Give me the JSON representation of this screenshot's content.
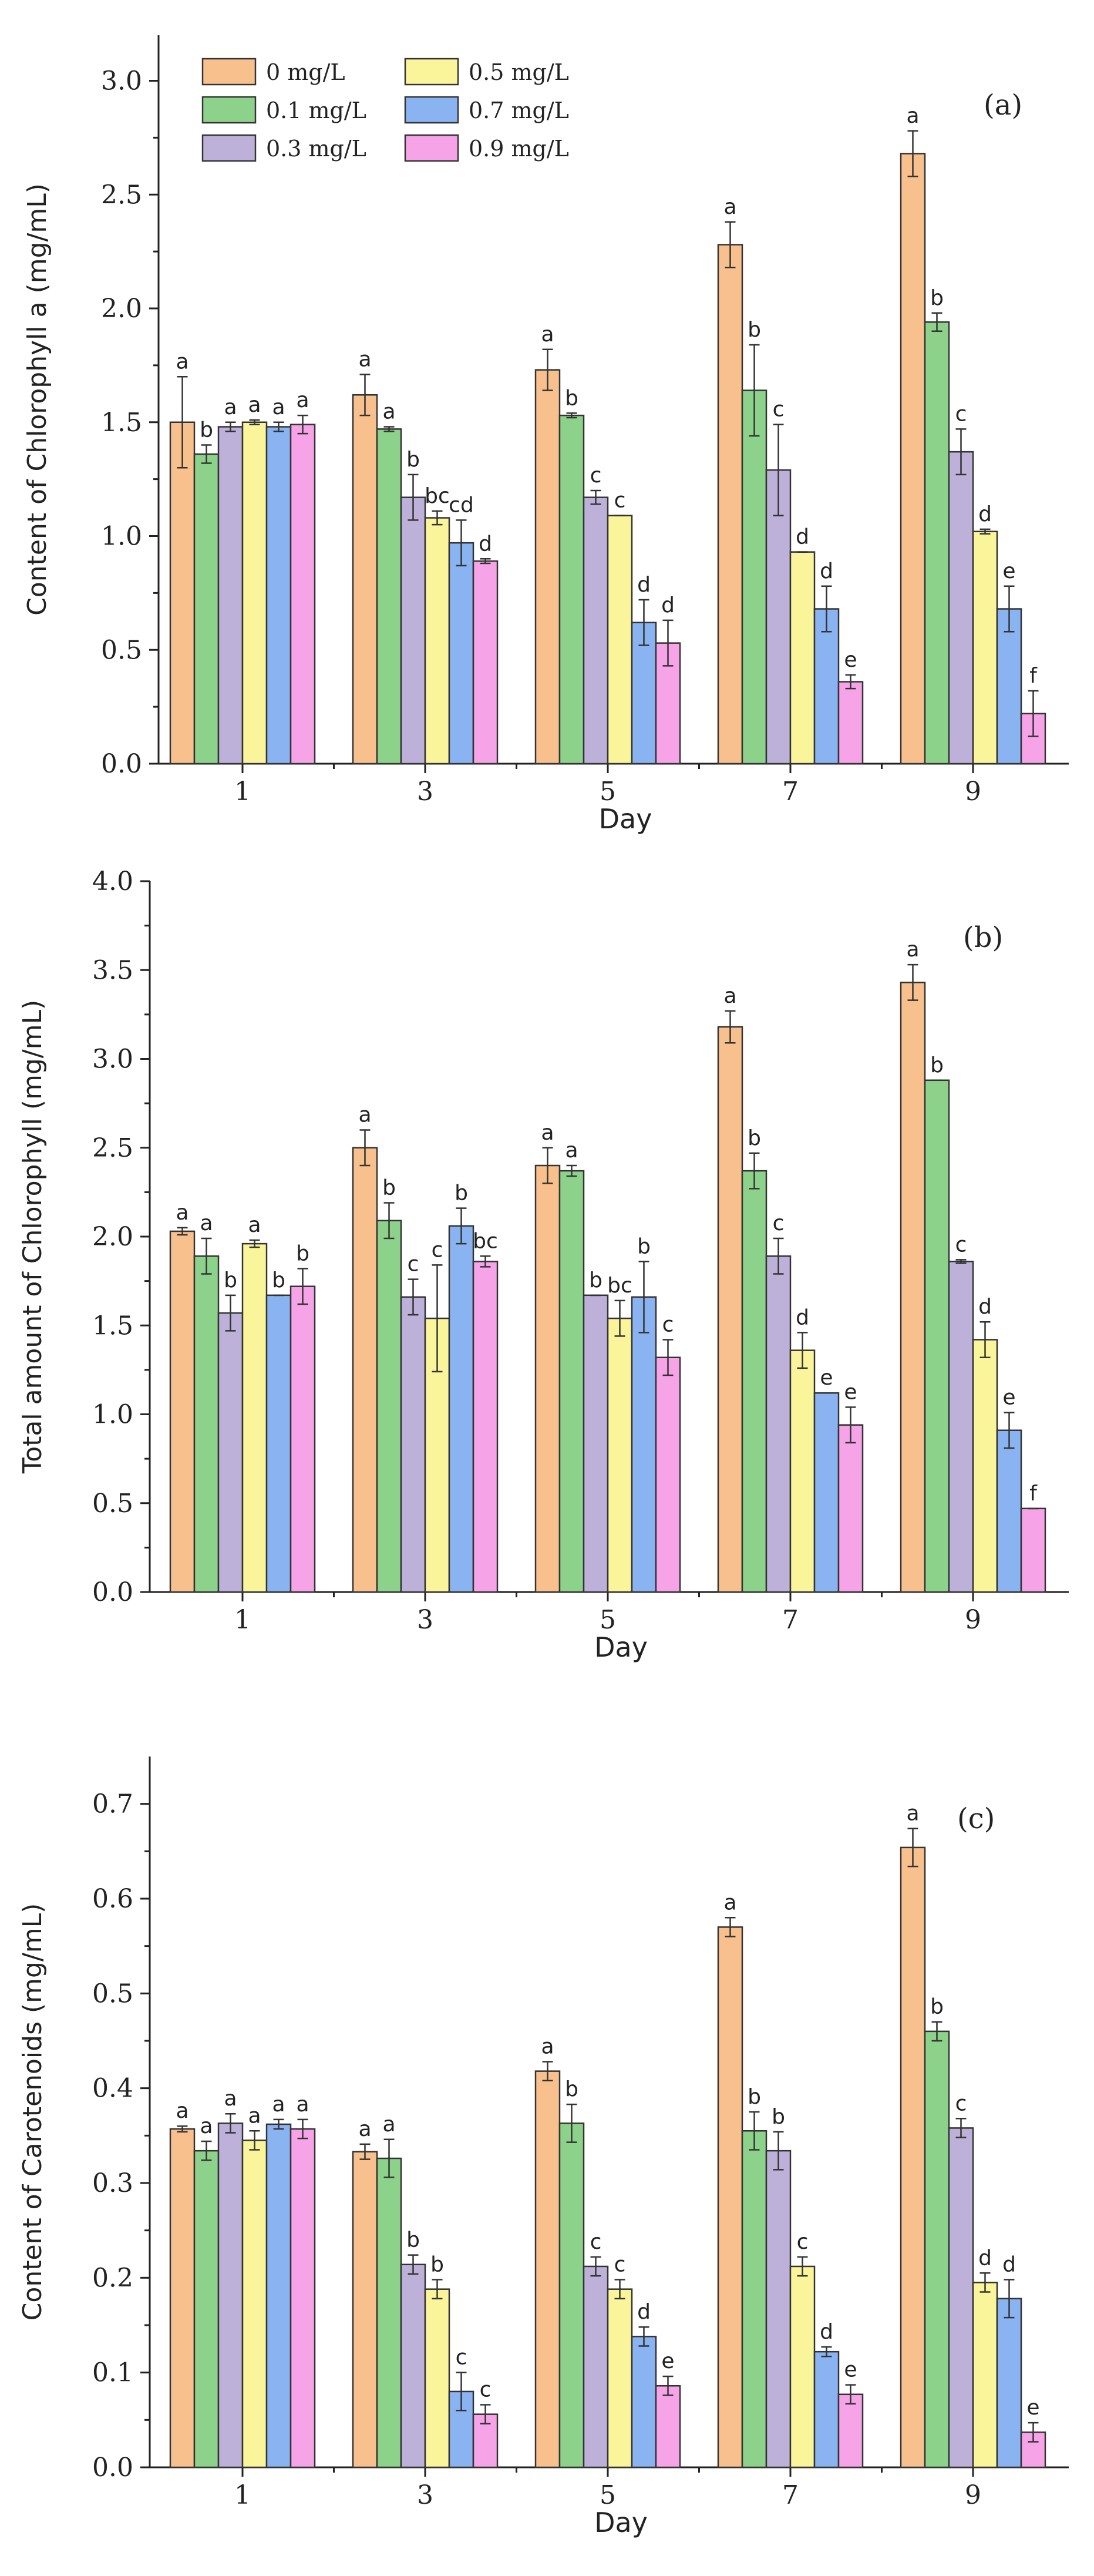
{
  "legend": {
    "entries": [
      {
        "label": "0  mg/L",
        "color": "#F7C08C"
      },
      {
        "label": "0.1  mg/L",
        "color": "#8DD28A"
      },
      {
        "label": "0.3  mg/L",
        "color": "#BDB1D9"
      },
      {
        "label": "0.5  mg/L",
        "color": "#FAF59A"
      },
      {
        "label": "0.7  mg/L",
        "color": "#8AB3F2"
      },
      {
        "label": "0.9  mg/L",
        "color": "#F6A3E8"
      }
    ]
  },
  "chart_data": [
    {
      "type": "bar",
      "panel": "(a)",
      "xlabel": "Day",
      "ylabel": "Content of Chlorophyll a  (mg/mL)",
      "categories": [
        "1",
        "3",
        "5",
        "7",
        "9"
      ],
      "ylim": [
        0,
        3.2
      ],
      "yticks": [
        "0.0",
        "0.5",
        "1.0",
        "1.5",
        "2.0",
        "2.5",
        "3.0"
      ],
      "series": [
        {
          "name": "0 mg/L",
          "values": [
            1.5,
            1.62,
            1.73,
            2.28,
            2.68
          ],
          "errors": [
            0.2,
            0.09,
            0.09,
            0.1,
            0.1
          ],
          "letters": [
            "a",
            "a",
            "a",
            "a",
            "a"
          ]
        },
        {
          "name": "0.1 mg/L",
          "values": [
            1.36,
            1.47,
            1.53,
            1.64,
            1.94
          ],
          "errors": [
            0.04,
            0.01,
            0.01,
            0.2,
            0.04
          ],
          "letters": [
            "b",
            "a",
            "b",
            "b",
            "b"
          ]
        },
        {
          "name": "0.3 mg/L",
          "values": [
            1.48,
            1.17,
            1.17,
            1.29,
            1.37
          ],
          "errors": [
            0.02,
            0.1,
            0.03,
            0.2,
            0.1
          ],
          "letters": [
            "a",
            "b",
            "c",
            "c",
            "c"
          ]
        },
        {
          "name": "0.5 mg/L",
          "values": [
            1.5,
            1.08,
            1.09,
            0.93,
            1.02
          ],
          "errors": [
            0.01,
            0.03,
            0.0,
            0.0,
            0.01
          ],
          "letters": [
            "a",
            "bc",
            "c",
            "d",
            "d"
          ]
        },
        {
          "name": "0.7 mg/L",
          "values": [
            1.48,
            0.97,
            0.62,
            0.68,
            0.68
          ],
          "errors": [
            0.02,
            0.1,
            0.1,
            0.1,
            0.1
          ],
          "letters": [
            "a",
            "cd",
            "d",
            "d",
            "e"
          ]
        },
        {
          "name": "0.9 mg/L",
          "values": [
            1.49,
            0.89,
            0.53,
            0.36,
            0.22
          ],
          "errors": [
            0.04,
            0.01,
            0.1,
            0.03,
            0.1
          ],
          "letters": [
            "a",
            "d",
            "d",
            "e",
            "f"
          ]
        }
      ]
    },
    {
      "type": "bar",
      "panel": "(b)",
      "xlabel": "Day",
      "ylabel": "Total amount of Chlorophyll  (mg/mL)",
      "categories": [
        "1",
        "3",
        "5",
        "7",
        "9"
      ],
      "ylim": [
        0,
        4.0
      ],
      "yticks": [
        "0.0",
        "0.5",
        "1.0",
        "1.5",
        "2.0",
        "2.5",
        "3.0",
        "3.5",
        "4.0"
      ],
      "series": [
        {
          "name": "0 mg/L",
          "values": [
            2.03,
            2.5,
            2.4,
            3.18,
            3.43
          ],
          "errors": [
            0.02,
            0.1,
            0.1,
            0.09,
            0.1
          ],
          "letters": [
            "a",
            "a",
            "a",
            "a",
            "a"
          ]
        },
        {
          "name": "0.1 mg/L",
          "values": [
            1.89,
            2.09,
            2.37,
            2.37,
            2.88
          ],
          "errors": [
            0.1,
            0.1,
            0.03,
            0.1,
            0.0
          ],
          "letters": [
            "a",
            "b",
            "a",
            "b",
            "b"
          ]
        },
        {
          "name": "0.3 mg/L",
          "values": [
            1.57,
            1.66,
            1.67,
            1.89,
            1.86
          ],
          "errors": [
            0.1,
            0.1,
            0.0,
            0.1,
            0.01
          ],
          "letters": [
            "b",
            "c",
            "b",
            "c",
            "c"
          ]
        },
        {
          "name": "0.5 mg/L",
          "values": [
            1.96,
            1.54,
            1.54,
            1.36,
            1.42
          ],
          "errors": [
            0.02,
            0.3,
            0.1,
            0.1,
            0.1
          ],
          "letters": [
            "a",
            "c",
            "bc",
            "d",
            "d"
          ]
        },
        {
          "name": "0.7 mg/L",
          "values": [
            1.67,
            2.06,
            1.66,
            1.12,
            0.91
          ],
          "errors": [
            0.0,
            0.1,
            0.2,
            0.0,
            0.1
          ],
          "letters": [
            "b",
            "b",
            "b",
            "e",
            "e"
          ]
        },
        {
          "name": "0.9 mg/L",
          "values": [
            1.72,
            1.86,
            1.32,
            0.94,
            0.47
          ],
          "errors": [
            0.1,
            0.03,
            0.1,
            0.1,
            0.0
          ],
          "letters": [
            "b",
            "bc",
            "c",
            "e",
            "f"
          ]
        }
      ]
    },
    {
      "type": "bar",
      "panel": "(c)",
      "xlabel": "Day",
      "ylabel": "Content of Carotenoids  (mg/mL)",
      "categories": [
        "1",
        "3",
        "5",
        "7",
        "9"
      ],
      "ylim": [
        0,
        0.75
      ],
      "yticks": [
        "0.0",
        "0.1",
        "0.2",
        "0.3",
        "0.4",
        "0.5",
        "0.6",
        "0.7"
      ],
      "series": [
        {
          "name": "0 mg/L",
          "values": [
            0.357,
            0.333,
            0.418,
            0.57,
            0.654
          ],
          "errors": [
            0.003,
            0.008,
            0.01,
            0.01,
            0.02
          ],
          "letters": [
            "a",
            "a",
            "a",
            "a",
            "a"
          ]
        },
        {
          "name": "0.1 mg/L",
          "values": [
            0.334,
            0.326,
            0.363,
            0.355,
            0.46
          ],
          "errors": [
            0.01,
            0.02,
            0.02,
            0.02,
            0.01
          ],
          "letters": [
            "a",
            "a",
            "b",
            "b",
            "b"
          ]
        },
        {
          "name": "0.3 mg/L",
          "values": [
            0.363,
            0.214,
            0.212,
            0.334,
            0.358
          ],
          "errors": [
            0.01,
            0.01,
            0.01,
            0.02,
            0.01
          ],
          "letters": [
            "a",
            "b",
            "c",
            "b",
            "c"
          ]
        },
        {
          "name": "0.5 mg/L",
          "values": [
            0.345,
            0.188,
            0.188,
            0.212,
            0.195
          ],
          "errors": [
            0.01,
            0.01,
            0.01,
            0.01,
            0.01
          ],
          "letters": [
            "a",
            "b",
            "c",
            "c",
            "d"
          ]
        },
        {
          "name": "0.7 mg/L",
          "values": [
            0.362,
            0.08,
            0.138,
            0.122,
            0.178
          ],
          "errors": [
            0.005,
            0.02,
            0.01,
            0.005,
            0.02
          ],
          "letters": [
            "a",
            "c",
            "d",
            "d",
            "d"
          ]
        },
        {
          "name": "0.9 mg/L",
          "values": [
            0.357,
            0.056,
            0.086,
            0.077,
            0.037
          ],
          "errors": [
            0.01,
            0.01,
            0.01,
            0.01,
            0.01
          ],
          "letters": [
            "a",
            "c",
            "e",
            "e",
            "e"
          ]
        }
      ]
    }
  ]
}
